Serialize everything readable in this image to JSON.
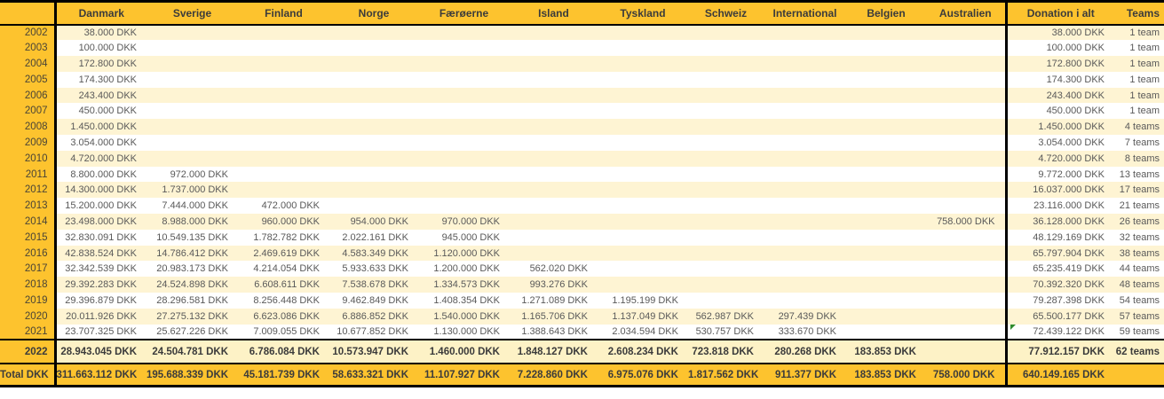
{
  "colors": {
    "header_gold": "#fdc32e",
    "stripe_cream": "#fef4d3",
    "highlight_cream": "#fdf2c6",
    "border_black": "#000000",
    "value_text": "#595959",
    "dark_text": "#3b3b3b",
    "flag_green": "#2e8b2e"
  },
  "chart_data": {
    "type": "table",
    "columns": [
      "Danmark",
      "Sverige",
      "Finland",
      "Norge",
      "Færøerne",
      "Island",
      "Tyskland",
      "Schweiz",
      "International",
      "Belgien",
      "Australien"
    ],
    "summary_columns": [
      "Donation i alt",
      "Teams"
    ],
    "rows": [
      {
        "year": "2002",
        "values": [
          "38.000 DKK",
          "",
          "",
          "",
          "",
          "",
          "",
          "",
          "",
          "",
          ""
        ],
        "donation": "38.000 DKK",
        "teams": "1 team"
      },
      {
        "year": "2003",
        "values": [
          "100.000 DKK",
          "",
          "",
          "",
          "",
          "",
          "",
          "",
          "",
          "",
          ""
        ],
        "donation": "100.000 DKK",
        "teams": "1 team"
      },
      {
        "year": "2004",
        "values": [
          "172.800 DKK",
          "",
          "",
          "",
          "",
          "",
          "",
          "",
          "",
          "",
          ""
        ],
        "donation": "172.800 DKK",
        "teams": "1 team"
      },
      {
        "year": "2005",
        "values": [
          "174.300 DKK",
          "",
          "",
          "",
          "",
          "",
          "",
          "",
          "",
          "",
          ""
        ],
        "donation": "174.300 DKK",
        "teams": "1 team"
      },
      {
        "year": "2006",
        "values": [
          "243.400 DKK",
          "",
          "",
          "",
          "",
          "",
          "",
          "",
          "",
          "",
          ""
        ],
        "donation": "243.400 DKK",
        "teams": "1 team"
      },
      {
        "year": "2007",
        "values": [
          "450.000 DKK",
          "",
          "",
          "",
          "",
          "",
          "",
          "",
          "",
          "",
          ""
        ],
        "donation": "450.000 DKK",
        "teams": "1 team"
      },
      {
        "year": "2008",
        "values": [
          "1.450.000 DKK",
          "",
          "",
          "",
          "",
          "",
          "",
          "",
          "",
          "",
          ""
        ],
        "donation": "1.450.000 DKK",
        "teams": "4 teams"
      },
      {
        "year": "2009",
        "values": [
          "3.054.000 DKK",
          "",
          "",
          "",
          "",
          "",
          "",
          "",
          "",
          "",
          ""
        ],
        "donation": "3.054.000 DKK",
        "teams": "7 teams"
      },
      {
        "year": "2010",
        "values": [
          "4.720.000 DKK",
          "",
          "",
          "",
          "",
          "",
          "",
          "",
          "",
          "",
          ""
        ],
        "donation": "4.720.000 DKK",
        "teams": "8 teams"
      },
      {
        "year": "2011",
        "values": [
          "8.800.000 DKK",
          "972.000 DKK",
          "",
          "",
          "",
          "",
          "",
          "",
          "",
          "",
          ""
        ],
        "donation": "9.772.000 DKK",
        "teams": "13 teams"
      },
      {
        "year": "2012",
        "values": [
          "14.300.000 DKK",
          "1.737.000 DKK",
          "",
          "",
          "",
          "",
          "",
          "",
          "",
          "",
          ""
        ],
        "donation": "16.037.000 DKK",
        "teams": "17 teams"
      },
      {
        "year": "2013",
        "values": [
          "15.200.000 DKK",
          "7.444.000 DKK",
          "472.000 DKK",
          "",
          "",
          "",
          "",
          "",
          "",
          "",
          ""
        ],
        "donation": "23.116.000 DKK",
        "teams": "21 teams"
      },
      {
        "year": "2014",
        "values": [
          "23.498.000 DKK",
          "8.988.000 DKK",
          "960.000 DKK",
          "954.000 DKK",
          "970.000 DKK",
          "",
          "",
          "",
          "",
          "",
          "758.000 DKK"
        ],
        "donation": "36.128.000 DKK",
        "teams": "26 teams"
      },
      {
        "year": "2015",
        "values": [
          "32.830.091 DKK",
          "10.549.135 DKK",
          "1.782.782 DKK",
          "2.022.161 DKK",
          "945.000 DKK",
          "",
          "",
          "",
          "",
          "",
          ""
        ],
        "donation": "48.129.169 DKK",
        "teams": "32 teams"
      },
      {
        "year": "2016",
        "values": [
          "42.838.524 DKK",
          "14.786.412 DKK",
          "2.469.619 DKK",
          "4.583.349 DKK",
          "1.120.000 DKK",
          "",
          "",
          "",
          "",
          "",
          ""
        ],
        "donation": "65.797.904 DKK",
        "teams": "38 teams"
      },
      {
        "year": "2017",
        "values": [
          "32.342.539 DKK",
          "20.983.173 DKK",
          "4.214.054 DKK",
          "5.933.633 DKK",
          "1.200.000 DKK",
          "562.020 DKK",
          "",
          "",
          "",
          "",
          ""
        ],
        "donation": "65.235.419 DKK",
        "teams": "44 teams"
      },
      {
        "year": "2018",
        "values": [
          "29.392.283 DKK",
          "24.524.898 DKK",
          "6.608.611 DKK",
          "7.538.678 DKK",
          "1.334.573 DKK",
          "993.276 DKK",
          "",
          "",
          "",
          "",
          ""
        ],
        "donation": "70.392.320 DKK",
        "teams": "48 teams"
      },
      {
        "year": "2019",
        "values": [
          "29.396.879 DKK",
          "28.296.581 DKK",
          "8.256.448 DKK",
          "9.462.849 DKK",
          "1.408.354 DKK",
          "1.271.089 DKK",
          "1.195.199 DKK",
          "",
          "",
          "",
          ""
        ],
        "donation": "79.287.398 DKK",
        "teams": "54 teams"
      },
      {
        "year": "2020",
        "values": [
          "20.011.926 DKK",
          "27.275.132 DKK",
          "6.623.086 DKK",
          "6.886.852 DKK",
          "1.540.000 DKK",
          "1.165.706 DKK",
          "1.137.049 DKK",
          "562.987 DKK",
          "297.439 DKK",
          "",
          ""
        ],
        "donation": "65.500.177 DKK",
        "teams": "57 teams"
      },
      {
        "year": "2021",
        "values": [
          "23.707.325 DKK",
          "25.627.226 DKK",
          "7.009.055 DKK",
          "10.677.852 DKK",
          "1.130.000 DKK",
          "1.388.643 DKK",
          "2.034.594 DKK",
          "530.757 DKK",
          "333.670 DKK",
          "",
          ""
        ],
        "donation": "72.439.122 DKK",
        "teams": "59 teams",
        "donation_flag": "green-triangle-icon"
      },
      {
        "year": "2022",
        "values": [
          "28.943.045 DKK",
          "24.504.781 DKK",
          "6.786.084 DKK",
          "10.573.947 DKK",
          "1.460.000 DKK",
          "1.848.127 DKK",
          "2.608.234 DKK",
          "723.818 DKK",
          "280.268 DKK",
          "183.853 DKK",
          ""
        ],
        "donation": "77.912.157 DKK",
        "teams": "62 teams",
        "highlight": true
      }
    ],
    "total": {
      "label": "Total DKK",
      "values": [
        "311.663.112 DKK",
        "195.688.339 DKK",
        "45.181.739 DKK",
        "58.633.321 DKK",
        "11.107.927 DKK",
        "7.228.860 DKK",
        "6.975.076 DKK",
        "1.817.562 DKK",
        "911.377 DKK",
        "183.853 DKK",
        "758.000 DKK"
      ],
      "donation": "640.149.165 DKK",
      "teams": ""
    }
  }
}
